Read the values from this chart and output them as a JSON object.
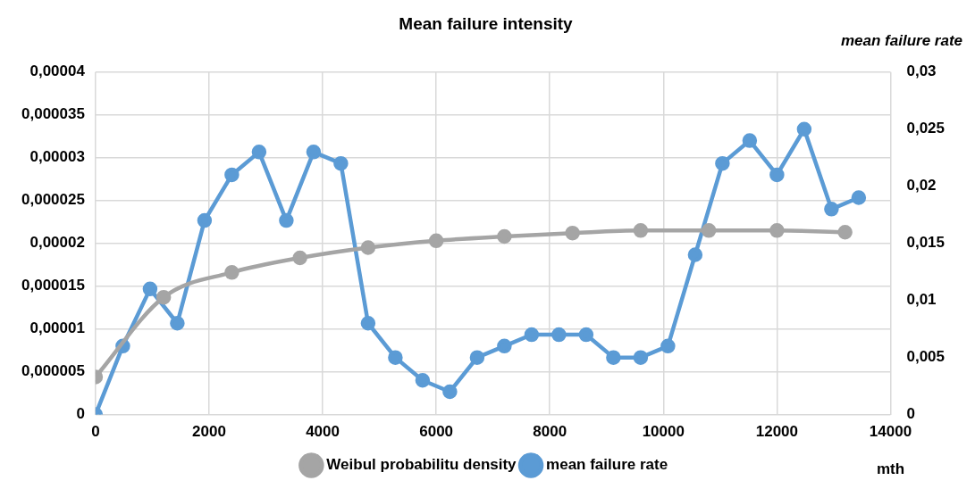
{
  "chart_data": {
    "type": "line",
    "title": "Mean failure intensity",
    "xlabel": "mth",
    "y2label": "mean failure rate",
    "xlim": [
      0,
      14000
    ],
    "xticks": [
      0,
      2000,
      4000,
      6000,
      8000,
      10000,
      12000,
      14000
    ],
    "ylim": [
      0,
      4e-05
    ],
    "yticks": [
      0,
      {
        "value": 5e-06,
        "label": "0,000005"
      },
      {
        "value": 1e-05,
        "label": "0,00001"
      },
      {
        "value": 1.5e-05,
        "label": "0,000015"
      },
      {
        "value": 2e-05,
        "label": "0,00002"
      },
      {
        "value": 2.5e-05,
        "label": "0,000025"
      },
      {
        "value": 3e-05,
        "label": "0,00003"
      },
      {
        "value": 3.5e-05,
        "label": "0,000035"
      },
      {
        "value": 4e-05,
        "label": "0,00004"
      }
    ],
    "y2lim": [
      0,
      0.03
    ],
    "y2ticks": [
      0,
      {
        "value": 0.005,
        "label": "0,005"
      },
      {
        "value": 0.01,
        "label": "0,01"
      },
      {
        "value": 0.015,
        "label": "0,015"
      },
      {
        "value": 0.02,
        "label": "0,02"
      },
      {
        "value": 0.025,
        "label": "0,025"
      },
      {
        "value": 0.03,
        "label": "0,03"
      }
    ],
    "grid": true,
    "legend": "bottom",
    "marker": "circle",
    "series": [
      {
        "name": "Weibul probabilitu density",
        "color": "#a5a5a5",
        "x": [
          0,
          1200,
          2400,
          3600,
          4800,
          6000,
          7200,
          8400,
          9600,
          10800,
          12000,
          13200
        ],
        "values": [
          4.4e-06,
          1.37e-05,
          1.66e-05,
          1.83e-05,
          1.95e-05,
          2.03e-05,
          2.08e-05,
          2.12e-05,
          2.15e-05,
          2.15e-05,
          2.15e-05,
          2.13e-05
        ]
      },
      {
        "name": "mean failure rate",
        "color": "#5b9bd5",
        "axis": "y2",
        "x": [
          0,
          480,
          960,
          1440,
          1920,
          2400,
          2880,
          3360,
          3840,
          4320,
          4800,
          5280,
          5760,
          6240,
          6720,
          7200,
          7680,
          8160,
          8640,
          9120,
          9600,
          10080,
          10560,
          11040,
          11520,
          12000,
          12480,
          12960,
          13440
        ],
        "values": [
          0,
          0.006,
          0.011,
          0.008,
          0.017,
          0.021,
          0.023,
          0.017,
          0.023,
          0.022,
          0.008,
          0.005,
          0.003,
          0.002,
          0.005,
          0.006,
          0.007,
          0.007,
          0.007,
          0.005,
          0.005,
          0.006,
          0.014,
          0.022,
          0.024,
          0.021,
          0.025,
          0.018,
          0.019
        ]
      }
    ]
  }
}
